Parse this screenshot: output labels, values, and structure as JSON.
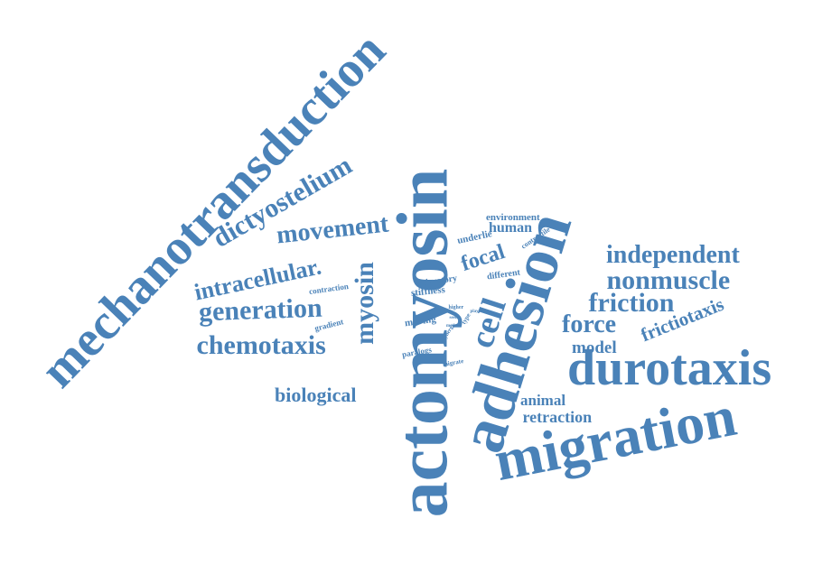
{
  "color": "#4a82b8",
  "words": {
    "actomyosin": "actomyosin",
    "mechanotransduction": "mechanotransduction",
    "adhesion": "adhesion",
    "migration": "migration",
    "durotaxis": "durotaxis",
    "cell": "cell",
    "myosin": "myosin",
    "dictyostelium": "dictyostelium",
    "movement": "movement",
    "intracellular": "intracellular.",
    "generation": "generation",
    "chemotaxis": "chemotaxis",
    "biological": "biological",
    "independent": "independent",
    "nonmuscle": "nonmuscle",
    "friction": "friction",
    "force": "force",
    "model": "model",
    "frictiotaxis": "frictiotaxis",
    "animal": "animal",
    "retraction": "retraction",
    "focal": "focal",
    "human": "human",
    "environment": "environment",
    "underlie": "underlie",
    "contractile": "contractile",
    "different": "different",
    "migratory": "migratory",
    "contraction": "contraction",
    "stiffness": "stiffness",
    "gradient": "gradient",
    "moving": "moving",
    "paralogs": "paralogs",
    "migrate": "migrate",
    "higher": "higher",
    "seems": "seems",
    "mode": "mode",
    "synergy": "synergy",
    "type": "type",
    "plays": "plays"
  }
}
